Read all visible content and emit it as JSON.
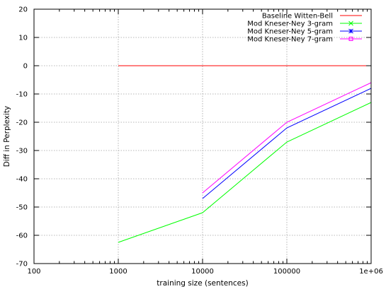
{
  "chart_data": {
    "type": "line",
    "title": "",
    "xlabel": "training size (sentences)",
    "ylabel": "Diff in Perplexity",
    "x_scale": "log",
    "xlim": [
      100,
      1000000
    ],
    "ylim": [
      -70,
      20
    ],
    "x_ticks": [
      100,
      1000,
      10000,
      100000,
      1000000
    ],
    "x_tick_labels": [
      "100",
      "1000",
      "10000",
      "100000",
      "1e+06"
    ],
    "y_ticks": [
      20,
      10,
      0,
      -10,
      -20,
      -30,
      -40,
      -50,
      -60,
      -70
    ],
    "y_tick_labels": [
      "20",
      "10",
      "0",
      "-10",
      "-20",
      "-30",
      "-40",
      "-50",
      "-60",
      "-70"
    ],
    "grid": true,
    "legend_position": "top-right",
    "series": [
      {
        "name": "Baseline Witten-Bell",
        "color": "#ff0000",
        "marker": "none",
        "x": [
          1000,
          1000000
        ],
        "y": [
          0,
          0
        ]
      },
      {
        "name": "Mod Kneser-Ney 3-gram",
        "color": "#00ff00",
        "marker": "x",
        "x": [
          1000,
          10000,
          100000,
          1000000
        ],
        "y": [
          -62.5,
          -52,
          -27,
          -13
        ]
      },
      {
        "name": "Mod Kneser-Ney 5-gram",
        "color": "#0000ff",
        "marker": "asterisk",
        "x": [
          10000,
          100000,
          1000000
        ],
        "y": [
          -47,
          -22,
          -8
        ]
      },
      {
        "name": "Mod Kneser-Ney 7-gram",
        "color": "#ff00ff",
        "marker": "box",
        "x": [
          10000,
          100000,
          1000000
        ],
        "y": [
          -45,
          -20,
          -6
        ]
      }
    ]
  }
}
